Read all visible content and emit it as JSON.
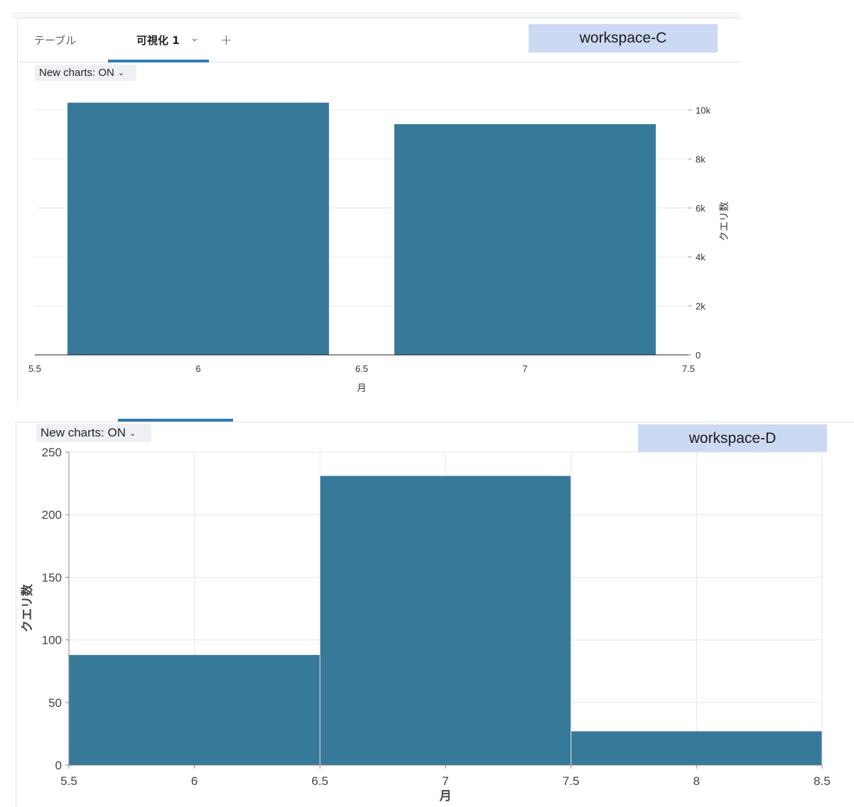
{
  "panel_c": {
    "tabs": [
      {
        "label": "テーブル"
      },
      {
        "label": "可視化 1"
      }
    ],
    "tab_chevron": "⌄",
    "add_tab": "+",
    "workspace_label": "workspace-C",
    "toggle_label": "New charts: ON",
    "toggle_caret": "⌄"
  },
  "panel_d": {
    "workspace_label": "workspace-D",
    "toggle_label": "New charts: ON",
    "toggle_caret": "⌄"
  },
  "chart_data": [
    {
      "type": "bar",
      "x_bins": [
        [
          5.6,
          6.4
        ],
        [
          6.6,
          7.4
        ]
      ],
      "x": [
        6,
        7
      ],
      "values": [
        10300,
        9420
      ],
      "xlabel": "月",
      "ylabel": "クエリ数",
      "xlim": [
        5.5,
        7.5
      ],
      "ylim": [
        0,
        10000
      ],
      "x_ticks": [
        "5.5",
        "6",
        "6.5",
        "7",
        "7.5"
      ],
      "y_ticks": [
        "0",
        "2k",
        "4k",
        "6k",
        "8k",
        "10k"
      ],
      "y_axis_side": "right",
      "grid": "horizontal",
      "bar_color": "#377999"
    },
    {
      "type": "bar",
      "x_bins": [
        [
          5.5,
          6.5
        ],
        [
          6.5,
          7.5
        ],
        [
          7.5,
          8.5
        ]
      ],
      "x": [
        6,
        7,
        8
      ],
      "values": [
        88,
        231,
        27
      ],
      "xlabel": "月",
      "ylabel": "クエリ数",
      "xlim": [
        5.5,
        8.5
      ],
      "ylim": [
        0,
        250
      ],
      "x_ticks": [
        "5.5",
        "6",
        "6.5",
        "7",
        "7.5",
        "8",
        "8.5"
      ],
      "y_ticks": [
        "0",
        "50",
        "100",
        "150",
        "200",
        "250"
      ],
      "y_axis_side": "left",
      "grid": "both",
      "bar_color": "#377999"
    }
  ]
}
